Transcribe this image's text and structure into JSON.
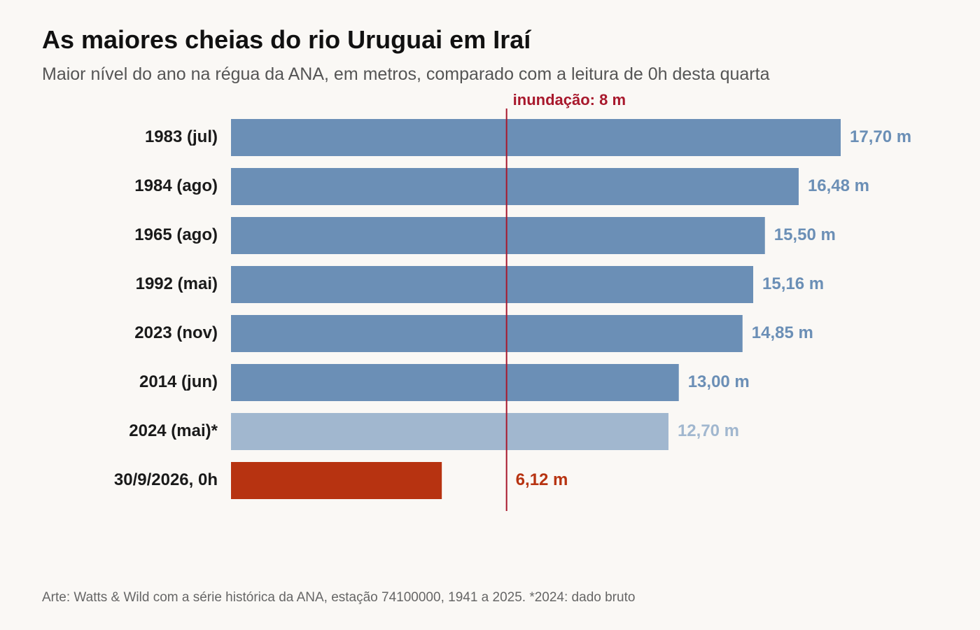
{
  "header": {
    "title": "As maiores cheias do rio Uruguai em Iraí",
    "subtitle": "Maior nível do ano na régua da ANA, em metros, comparado com a leitura de 0h desta quarta"
  },
  "footer": {
    "source": "Arte: Watts & Wild com a série histórica da ANA, estação 74100000, 1941 a 2025. *2024: dado bruto"
  },
  "colors": {
    "primary": "#6b8fb6",
    "light": "#a1b7cf",
    "current": "#b73311",
    "threshold": "#a8182c"
  },
  "chart_data": {
    "type": "bar",
    "orientation": "horizontal",
    "categories": [
      "1983 (jul)",
      "1984 (ago)",
      "1965 (ago)",
      "1992 (mai)",
      "2023 (nov)",
      "2014 (jun)",
      "2024 (mai)*",
      "30/9/2026, 0h"
    ],
    "values": [
      17.7,
      16.48,
      15.5,
      15.16,
      14.85,
      13.0,
      12.7,
      6.12
    ],
    "value_labels": [
      "17,70 m",
      "16,48 m",
      "15,50 m",
      "15,16 m",
      "14,85 m",
      "13,00 m",
      "12,70 m",
      "6,12 m"
    ],
    "bar_styles": [
      "primary",
      "primary",
      "primary",
      "primary",
      "primary",
      "primary",
      "light",
      "current"
    ],
    "xlim": [
      0,
      18
    ],
    "threshold": {
      "value": 8,
      "label": "inundação: 8 m"
    },
    "grid": false,
    "legend": "none"
  }
}
